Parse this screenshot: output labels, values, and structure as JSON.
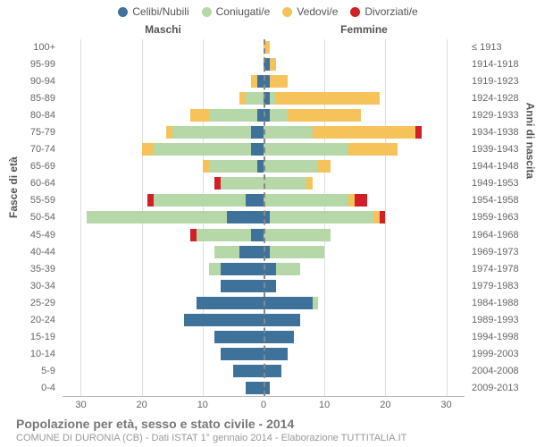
{
  "legend": [
    {
      "label": "Celibi/Nubili",
      "color": "#3f729b"
    },
    {
      "label": "Coniugati/e",
      "color": "#b6d7a8"
    },
    {
      "label": "Vedovi/e",
      "color": "#f6c35a"
    },
    {
      "label": "Divorziati/e",
      "color": "#d22028"
    }
  ],
  "headers": {
    "male": "Maschi",
    "female": "Femmine"
  },
  "axis": {
    "left_title": "Fasce di età",
    "right_title": "Anni di nascita",
    "x_max": 33,
    "x_ticks": [
      30,
      20,
      10,
      0,
      10,
      20,
      30
    ]
  },
  "colors": {
    "celibi": "#3f729b",
    "coniugati": "#b6d7a8",
    "vedovi": "#f6c35a",
    "divorziati": "#d22028",
    "grid": "#dddddd",
    "center": "#888888",
    "bg": "#ffffff"
  },
  "footer": {
    "title": "Popolazione per età, sesso e stato civile - 2014",
    "sub": "COMUNE DI DURONIA (CB) - Dati ISTAT 1° gennaio 2014 - Elaborazione TUTTITALIA.IT"
  },
  "age_labels": [
    "100+",
    "95-99",
    "90-94",
    "85-89",
    "80-84",
    "75-79",
    "70-74",
    "65-69",
    "60-64",
    "55-59",
    "50-54",
    "45-49",
    "40-44",
    "35-39",
    "30-34",
    "25-29",
    "20-24",
    "15-19",
    "10-14",
    "5-9",
    "0-4"
  ],
  "birth_labels": [
    "≤ 1913",
    "1914-1918",
    "1919-1923",
    "1924-1928",
    "1929-1933",
    "1934-1938",
    "1939-1943",
    "1944-1948",
    "1949-1953",
    "1954-1958",
    "1959-1963",
    "1964-1968",
    "1969-1973",
    "1974-1978",
    "1979-1983",
    "1984-1988",
    "1989-1993",
    "1994-1998",
    "1999-2003",
    "2004-2008",
    "2009-2013"
  ],
  "rows": [
    {
      "m": {
        "c": 0,
        "co": 0,
        "v": 0,
        "d": 0
      },
      "f": {
        "c": 0,
        "co": 0,
        "v": 1,
        "d": 0
      }
    },
    {
      "m": {
        "c": 0,
        "co": 0,
        "v": 0,
        "d": 0
      },
      "f": {
        "c": 1,
        "co": 0,
        "v": 1,
        "d": 0
      }
    },
    {
      "m": {
        "c": 1,
        "co": 0,
        "v": 1,
        "d": 0
      },
      "f": {
        "c": 1,
        "co": 0,
        "v": 3,
        "d": 0
      }
    },
    {
      "m": {
        "c": 0,
        "co": 3,
        "v": 1,
        "d": 0
      },
      "f": {
        "c": 1,
        "co": 1,
        "v": 17,
        "d": 0
      }
    },
    {
      "m": {
        "c": 1,
        "co": 8,
        "v": 3,
        "d": 0
      },
      "f": {
        "c": 1,
        "co": 3,
        "v": 12,
        "d": 0
      }
    },
    {
      "m": {
        "c": 2,
        "co": 13,
        "v": 1,
        "d": 0
      },
      "f": {
        "c": 0,
        "co": 8,
        "v": 17,
        "d": 1
      }
    },
    {
      "m": {
        "c": 2,
        "co": 16,
        "v": 2,
        "d": 0
      },
      "f": {
        "c": 0,
        "co": 14,
        "v": 8,
        "d": 0
      }
    },
    {
      "m": {
        "c": 1,
        "co": 8,
        "v": 1,
        "d": 0
      },
      "f": {
        "c": 0,
        "co": 9,
        "v": 2,
        "d": 0
      }
    },
    {
      "m": {
        "c": 0,
        "co": 7,
        "v": 0,
        "d": 1
      },
      "f": {
        "c": 0,
        "co": 7,
        "v": 1,
        "d": 0
      }
    },
    {
      "m": {
        "c": 3,
        "co": 15,
        "v": 0,
        "d": 1
      },
      "f": {
        "c": 0,
        "co": 14,
        "v": 1,
        "d": 2
      }
    },
    {
      "m": {
        "c": 6,
        "co": 23,
        "v": 0,
        "d": 0
      },
      "f": {
        "c": 1,
        "co": 17,
        "v": 1,
        "d": 1
      }
    },
    {
      "m": {
        "c": 2,
        "co": 9,
        "v": 0,
        "d": 1
      },
      "f": {
        "c": 0,
        "co": 11,
        "v": 0,
        "d": 0
      }
    },
    {
      "m": {
        "c": 4,
        "co": 4,
        "v": 0,
        "d": 0
      },
      "f": {
        "c": 1,
        "co": 9,
        "v": 0,
        "d": 0
      }
    },
    {
      "m": {
        "c": 7,
        "co": 2,
        "v": 0,
        "d": 0
      },
      "f": {
        "c": 2,
        "co": 4,
        "v": 0,
        "d": 0
      }
    },
    {
      "m": {
        "c": 7,
        "co": 0,
        "v": 0,
        "d": 0
      },
      "f": {
        "c": 2,
        "co": 0,
        "v": 0,
        "d": 0
      }
    },
    {
      "m": {
        "c": 11,
        "co": 0,
        "v": 0,
        "d": 0
      },
      "f": {
        "c": 8,
        "co": 1,
        "v": 0,
        "d": 0
      }
    },
    {
      "m": {
        "c": 13,
        "co": 0,
        "v": 0,
        "d": 0
      },
      "f": {
        "c": 6,
        "co": 0,
        "v": 0,
        "d": 0
      }
    },
    {
      "m": {
        "c": 8,
        "co": 0,
        "v": 0,
        "d": 0
      },
      "f": {
        "c": 5,
        "co": 0,
        "v": 0,
        "d": 0
      }
    },
    {
      "m": {
        "c": 7,
        "co": 0,
        "v": 0,
        "d": 0
      },
      "f": {
        "c": 4,
        "co": 0,
        "v": 0,
        "d": 0
      }
    },
    {
      "m": {
        "c": 5,
        "co": 0,
        "v": 0,
        "d": 0
      },
      "f": {
        "c": 3,
        "co": 0,
        "v": 0,
        "d": 0
      }
    },
    {
      "m": {
        "c": 3,
        "co": 0,
        "v": 0,
        "d": 0
      },
      "f": {
        "c": 1,
        "co": 0,
        "v": 0,
        "d": 0
      }
    }
  ]
}
